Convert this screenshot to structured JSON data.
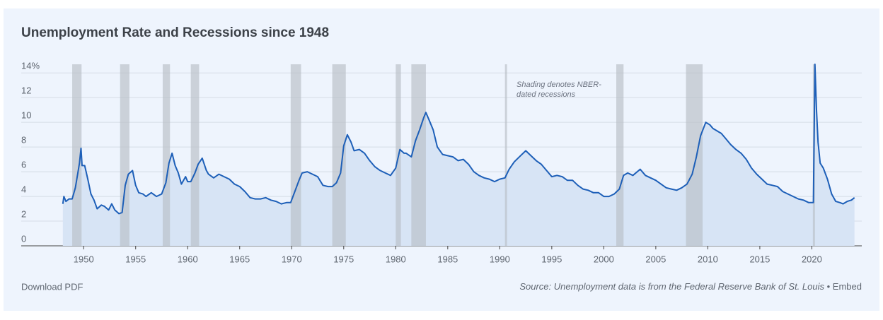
{
  "chart_data": {
    "type": "line",
    "title": "Unemployment Rate and Recessions since 1948",
    "annotation": [
      "Shading denotes NBER-",
      "dated recessions"
    ],
    "x": [
      1948.0,
      1948.1,
      1948.3,
      1948.6,
      1948.9,
      1949.2,
      1949.5,
      1949.6,
      1949.75,
      1949.85,
      1950.1,
      1950.4,
      1950.7,
      1951.0,
      1951.3,
      1951.7,
      1952.0,
      1952.4,
      1952.7,
      1953.0,
      1953.4,
      1953.7,
      1954.0,
      1954.3,
      1954.7,
      1955.0,
      1955.3,
      1955.7,
      1956.0,
      1956.5,
      1957.0,
      1957.5,
      1957.9,
      1958.2,
      1958.5,
      1958.8,
      1959.1,
      1959.4,
      1959.8,
      1960.0,
      1960.3,
      1960.7,
      1961.0,
      1961.4,
      1961.8,
      1962.0,
      1962.5,
      1963.0,
      1963.5,
      1964.0,
      1964.5,
      1965.0,
      1965.5,
      1966.0,
      1966.5,
      1967.0,
      1967.5,
      1968.0,
      1968.5,
      1969.0,
      1969.5,
      1969.9,
      1970.3,
      1970.7,
      1971.0,
      1971.5,
      1972.0,
      1972.5,
      1973.0,
      1973.5,
      1973.9,
      1974.3,
      1974.7,
      1975.0,
      1975.35,
      1975.7,
      1976.0,
      1976.5,
      1977.0,
      1977.5,
      1978.0,
      1978.5,
      1979.0,
      1979.5,
      1980.0,
      1980.4,
      1980.8,
      1981.0,
      1981.5,
      1981.9,
      1982.3,
      1982.7,
      1982.9,
      1983.2,
      1983.6,
      1984.0,
      1984.5,
      1985.0,
      1985.5,
      1986.0,
      1986.5,
      1987.0,
      1987.5,
      1988.0,
      1988.5,
      1989.0,
      1989.5,
      1990.0,
      1990.5,
      1990.9,
      1991.4,
      1992.0,
      1992.5,
      1993.0,
      1993.5,
      1994.0,
      1994.5,
      1995.0,
      1995.5,
      1996.0,
      1996.5,
      1997.0,
      1997.5,
      1998.0,
      1998.5,
      1999.0,
      1999.5,
      2000.0,
      2000.5,
      2001.0,
      2001.5,
      2001.9,
      2002.3,
      2002.8,
      2003.5,
      2004.0,
      2004.5,
      2005.0,
      2005.5,
      2006.0,
      2006.5,
      2007.0,
      2007.5,
      2008.0,
      2008.5,
      2008.9,
      2009.3,
      2009.8,
      2010.2,
      2010.5,
      2010.9,
      2011.3,
      2011.8,
      2012.2,
      2012.7,
      2013.2,
      2013.7,
      2014.2,
      2014.7,
      2015.2,
      2015.7,
      2016.2,
      2016.7,
      2017.2,
      2017.7,
      2018.2,
      2018.7,
      2019.2,
      2019.7,
      2020.15,
      2020.3,
      2020.45,
      2020.6,
      2020.8,
      2021.1,
      2021.5,
      2021.9,
      2022.3,
      2022.7,
      2023.0,
      2023.4,
      2023.8,
      2024.1
    ],
    "series": [
      {
        "color": "#1d5fb8",
        "area_color": "#d7e4f5",
        "values": [
          3.4,
          4.0,
          3.6,
          3.8,
          3.8,
          4.7,
          6.2,
          6.7,
          7.9,
          6.5,
          6.5,
          5.4,
          4.2,
          3.7,
          3.0,
          3.3,
          3.2,
          2.9,
          3.4,
          2.9,
          2.6,
          2.7,
          4.9,
          5.8,
          6.1,
          4.9,
          4.3,
          4.2,
          4.0,
          4.3,
          4.0,
          4.2,
          5.1,
          6.7,
          7.5,
          6.5,
          5.9,
          5.0,
          5.6,
          5.2,
          5.2,
          5.9,
          6.6,
          7.1,
          6.1,
          5.8,
          5.5,
          5.8,
          5.6,
          5.4,
          5.0,
          4.8,
          4.4,
          3.9,
          3.8,
          3.8,
          3.9,
          3.7,
          3.6,
          3.4,
          3.5,
          3.5,
          4.4,
          5.3,
          5.9,
          6.0,
          5.8,
          5.6,
          4.9,
          4.8,
          4.8,
          5.1,
          5.9,
          8.1,
          9.0,
          8.4,
          7.7,
          7.8,
          7.5,
          6.9,
          6.4,
          6.1,
          5.9,
          5.7,
          6.3,
          7.8,
          7.5,
          7.5,
          7.2,
          8.5,
          9.4,
          10.4,
          10.8,
          10.2,
          9.4,
          8.0,
          7.4,
          7.3,
          7.2,
          6.9,
          7.0,
          6.6,
          6.0,
          5.7,
          5.5,
          5.4,
          5.2,
          5.4,
          5.5,
          6.2,
          6.8,
          7.3,
          7.7,
          7.3,
          6.9,
          6.6,
          6.1,
          5.6,
          5.7,
          5.6,
          5.3,
          5.3,
          4.9,
          4.6,
          4.5,
          4.3,
          4.3,
          4.0,
          4.0,
          4.2,
          4.6,
          5.7,
          5.9,
          5.7,
          6.2,
          5.7,
          5.5,
          5.3,
          5.0,
          4.7,
          4.6,
          4.5,
          4.7,
          5.0,
          5.8,
          7.2,
          8.9,
          10.0,
          9.8,
          9.5,
          9.3,
          9.1,
          8.6,
          8.2,
          7.8,
          7.5,
          7.0,
          6.3,
          5.8,
          5.4,
          5.0,
          4.9,
          4.8,
          4.4,
          4.2,
          4.0,
          3.8,
          3.7,
          3.5,
          3.5,
          14.7,
          11.0,
          8.4,
          6.7,
          6.3,
          5.4,
          4.2,
          3.6,
          3.5,
          3.4,
          3.6,
          3.7,
          3.9
        ]
      }
    ],
    "recessions": [
      [
        1948.9,
        1949.8
      ],
      [
        1953.5,
        1954.4
      ],
      [
        1957.6,
        1958.3
      ],
      [
        1960.3,
        1961.1
      ],
      [
        1969.9,
        1970.9
      ],
      [
        1973.9,
        1975.2
      ],
      [
        1980.0,
        1980.5
      ],
      [
        1981.5,
        1982.9
      ],
      [
        1990.5,
        1990.7
      ],
      [
        2001.2,
        2001.9
      ],
      [
        2007.9,
        2009.5
      ],
      [
        2020.1,
        2020.3
      ]
    ],
    "recession_color": "#b9bec6",
    "xlim": [
      1944,
      2024.8
    ],
    "xticks": [
      1950,
      1955,
      1960,
      1965,
      1970,
      1975,
      1980,
      1985,
      1990,
      1995,
      2000,
      2005,
      2010,
      2015,
      2020
    ],
    "ylim": [
      0,
      14.7
    ],
    "yticks": [
      0,
      2,
      4,
      6,
      8,
      10,
      {
        "value": 12,
        "label": "12"
      },
      {
        "value": 14,
        "label": "14%"
      }
    ],
    "grid": true
  },
  "footer": {
    "download": "Download PDF",
    "source": "Source: Unemployment data is from the Federal Reserve Bank of St. Louis",
    "separator": "•",
    "embed": "Embed"
  }
}
